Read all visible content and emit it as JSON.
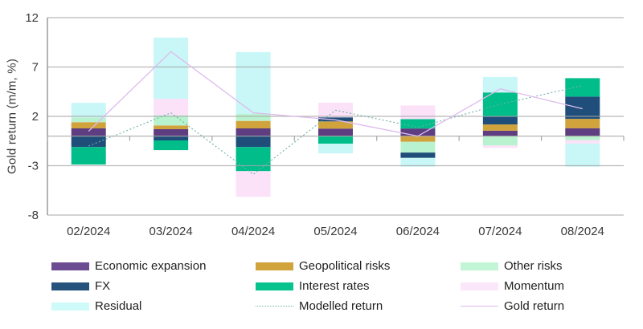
{
  "y_axis": {
    "title": "Gold return (m/m, %)",
    "ticks": [
      12,
      7,
      2,
      -3,
      -8
    ]
  },
  "x_axis": {
    "categories": [
      "02/2024",
      "03/2024",
      "04/2024",
      "05/2024",
      "06/2024",
      "07/2024",
      "08/2024"
    ]
  },
  "colors": {
    "grid": "#a6a6a6",
    "axis": "#8c8c8c",
    "tick_text": "#3a3a3a"
  },
  "chart_data": {
    "type": "bar",
    "subtype": "stacked-with-lines",
    "title": "",
    "xlabel": "",
    "ylabel": "Gold return (m/m, %)",
    "ylim": [
      -8,
      12
    ],
    "grid": true,
    "legend_position": "bottom",
    "categories": [
      "02/2024",
      "03/2024",
      "04/2024",
      "05/2024",
      "06/2024",
      "07/2024",
      "08/2024"
    ],
    "series": [
      {
        "name": "Economic expansion",
        "color": "#5e3d80",
        "legend_color": "#6b4b92",
        "values": [
          0.78,
          0.7,
          0.78,
          0.76,
          0.77,
          0.55,
          0.8
        ]
      },
      {
        "name": "Geopolitical risks",
        "color": "#d1a33c",
        "legend_color": "#d1a33c",
        "values": [
          0.63,
          0.38,
          0.76,
          0.73,
          -0.58,
          0.63,
          0.95
        ]
      },
      {
        "name": "Other risks",
        "color": "#b9f2cf",
        "legend_color": "#c2f5d5",
        "values": [
          0.46,
          1.03,
          0.73,
          0.0,
          -1.09,
          -0.95,
          -0.4
        ]
      },
      {
        "name": "FX",
        "color": "#204e7a",
        "legend_color": "#24527c",
        "values": [
          -1.11,
          -0.44,
          -1.11,
          0.41,
          -0.54,
          0.81,
          2.25
        ]
      },
      {
        "name": "Interest rates",
        "color": "#00bd8a",
        "legend_color": "#06c38d",
        "values": [
          -1.77,
          -0.98,
          -2.44,
          -0.77,
          0.95,
          2.43,
          1.87
        ]
      },
      {
        "name": "Momentum",
        "color": "#fbe2f9",
        "legend_color": "#fbe7fa",
        "values": [
          0.0,
          1.67,
          -2.6,
          1.49,
          1.38,
          -0.25,
          -0.35
        ]
      },
      {
        "name": "Residual",
        "color": "#c9f6f7",
        "legend_color": "#cffafa",
        "values": [
          1.5,
          6.2,
          6.24,
          -0.98,
          -0.89,
          1.57,
          -2.35
        ]
      }
    ],
    "lines": [
      {
        "name": "Modelled return",
        "style": "dotted",
        "color": "#6fb0a8",
        "values": [
          -1.01,
          2.36,
          -3.88,
          2.62,
          0.89,
          3.22,
          5.12
        ]
      },
      {
        "name": "Gold return",
        "style": "solid",
        "color": "#ddbbee",
        "values": [
          0.49,
          8.56,
          2.36,
          1.64,
          0.0,
          4.79,
          2.77
        ]
      }
    ]
  }
}
